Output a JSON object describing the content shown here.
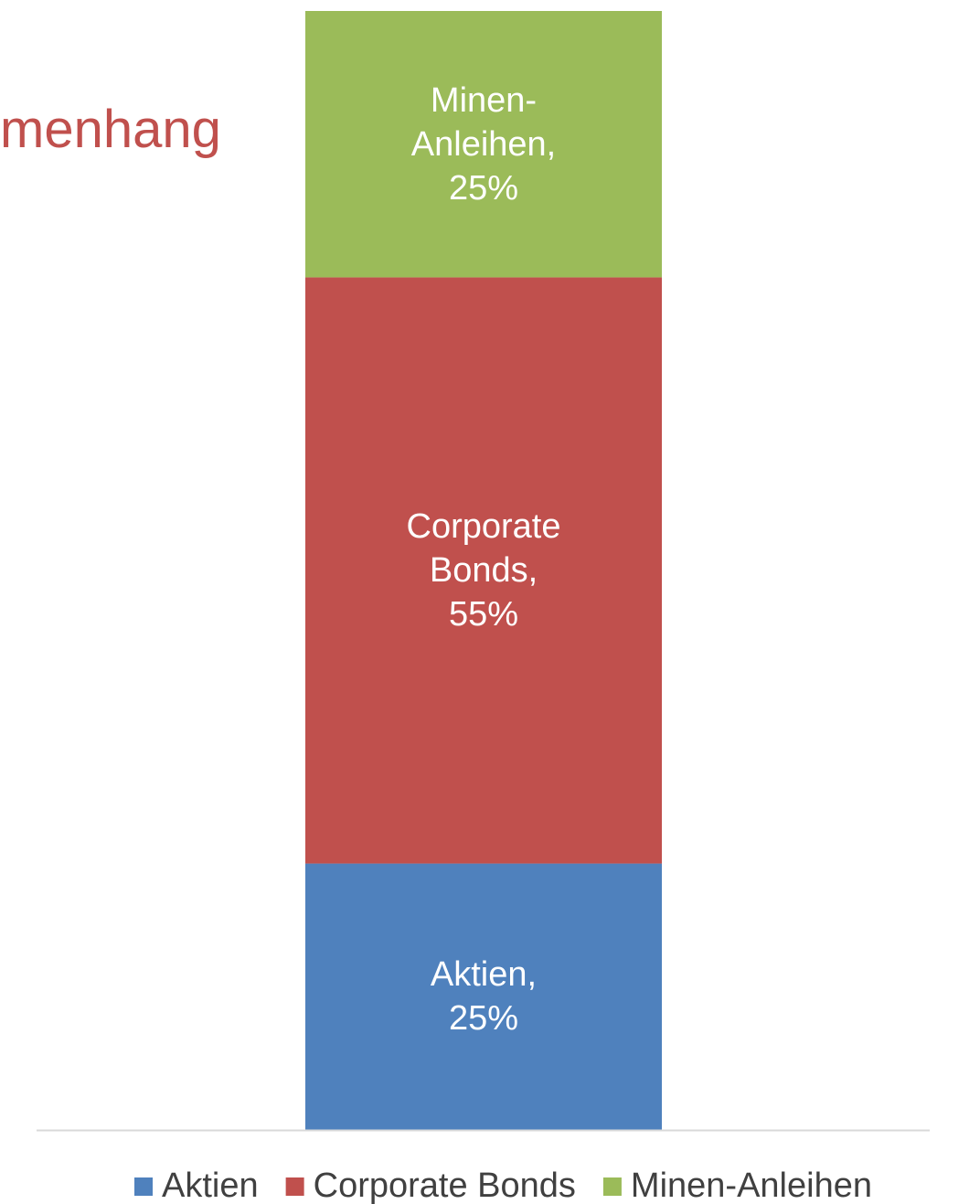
{
  "chart_data": {
    "type": "bar",
    "stacked": true,
    "title": "menhang",
    "categories": [
      null
    ],
    "series": [
      {
        "name": "Aktien",
        "color": "#4f81bd",
        "values": [
          25
        ],
        "value_labels": [
          "Aktien, 25%"
        ]
      },
      {
        "name": "Corporate Bonds",
        "color": "#c0504d",
        "values": [
          55
        ],
        "value_labels": [
          "Corporate Bonds, 55%"
        ]
      },
      {
        "name": "Minen-Anleihen",
        "color": "#9bbb59",
        "values": [
          25
        ],
        "value_labels": [
          "Minen-Anleihen, 25%"
        ]
      }
    ],
    "ylim": [
      0,
      105
    ],
    "legend": "bottom"
  }
}
